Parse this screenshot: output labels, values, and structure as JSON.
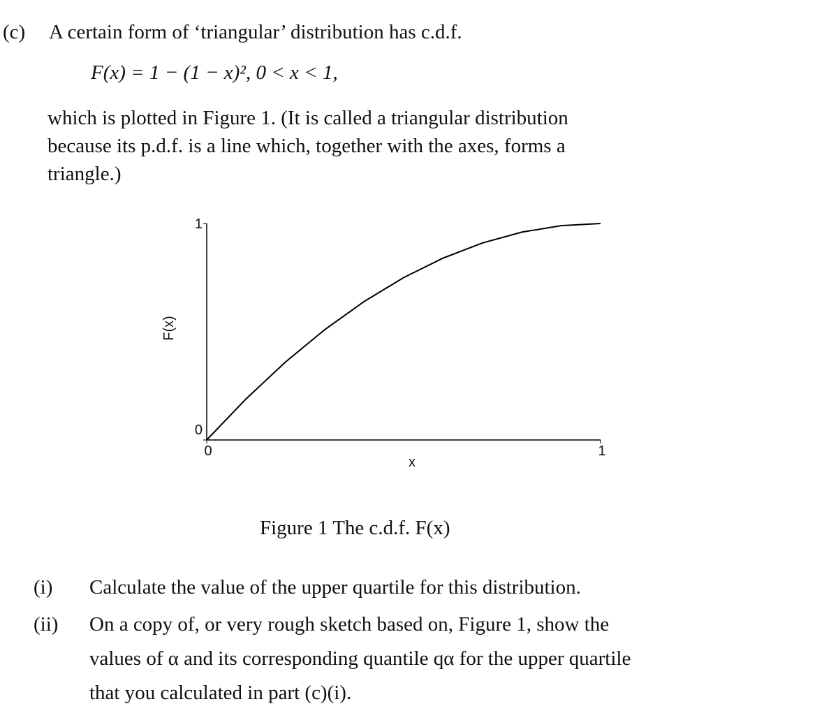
{
  "question": {
    "label": "(c)",
    "intro": "A certain form of ‘triangular’ distribution has c.d.f.",
    "formula": "F(x) = 1 − (1 − x)²,   0 < x < 1,",
    "paragraph": [
      "which is plotted in Figure 1. (It is called a triangular distribution",
      "because its p.d.f. is a line which, together with the axes, forms a",
      "triangle.)"
    ]
  },
  "chart_data": {
    "type": "line",
    "x_label": "x",
    "y_label": "F(x)",
    "caption": "Figure 1   The c.d.f. F(x)",
    "x": [
      0,
      0.1,
      0.2,
      0.3,
      0.4,
      0.5,
      0.6,
      0.7,
      0.8,
      0.9,
      1
    ],
    "values": [
      0,
      0.19,
      0.36,
      0.51,
      0.64,
      0.75,
      0.84,
      0.91,
      0.96,
      0.99,
      1
    ],
    "color": "#000000",
    "xlim": [
      0,
      1
    ],
    "ylim": [
      0,
      1
    ],
    "xticks": [
      0,
      1
    ],
    "yticks": [
      0,
      1
    ]
  },
  "parts": [
    {
      "label": "(i)",
      "lines": [
        "Calculate the value of the upper quartile for this distribution."
      ]
    },
    {
      "label": "(ii)",
      "lines": [
        "On a copy of, or very rough sketch based on, Figure 1, show the",
        "values of α and its corresponding quantile qα for the upper quartile",
        "that you calculated in part (c)(i)."
      ]
    }
  ]
}
